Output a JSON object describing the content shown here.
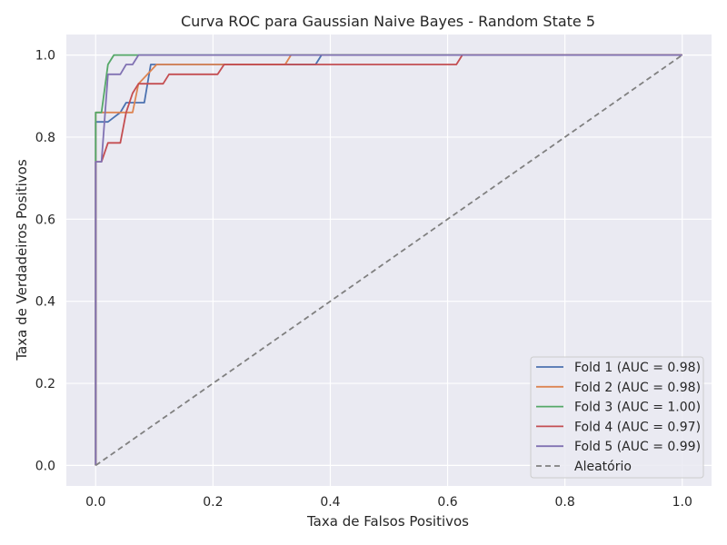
{
  "chart_data": {
    "type": "line",
    "title": "Curva ROC para Gaussian Naive Bayes - Random State 5",
    "xlabel": "Taxa de Falsos Positivos",
    "ylabel": "Taxa de Verdadeiros Positivos",
    "xlim": [
      -0.05,
      1.05
    ],
    "ylim": [
      -0.05,
      1.05
    ],
    "xticks": [
      "0.0",
      "0.2",
      "0.4",
      "0.6",
      "0.8",
      "1.0"
    ],
    "yticks": [
      "0.0",
      "0.2",
      "0.4",
      "0.6",
      "0.8",
      "1.0"
    ],
    "grid": true,
    "legend_position": "lower-right",
    "background": "#eaeaf2",
    "series": [
      {
        "name": "Fold 1 (AUC = 0.98)",
        "color": "#4c72b0",
        "x": [
          0.0,
          0.0,
          0.021,
          0.042,
          0.052,
          0.083,
          0.094,
          0.375,
          0.385,
          1.0
        ],
        "y": [
          0.0,
          0.837,
          0.837,
          0.86,
          0.884,
          0.884,
          0.977,
          0.977,
          1.0,
          1.0
        ]
      },
      {
        "name": "Fold 2 (AUC = 0.98)",
        "color": "#dd8452",
        "x": [
          0.0,
          0.0,
          0.063,
          0.073,
          0.104,
          0.323,
          0.333,
          1.0
        ],
        "y": [
          0.0,
          0.86,
          0.86,
          0.93,
          0.977,
          0.977,
          1.0,
          1.0
        ]
      },
      {
        "name": "Fold 3 (AUC = 1.00)",
        "color": "#55a868",
        "x": [
          0.0,
          0.0,
          0.01,
          0.021,
          0.031,
          0.073,
          1.0
        ],
        "y": [
          0.0,
          0.86,
          0.86,
          0.977,
          1.0,
          1.0,
          1.0
        ]
      },
      {
        "name": "Fold 4 (AUC = 0.97)",
        "color": "#c44e52",
        "x": [
          0.0,
          0.0,
          0.01,
          0.021,
          0.042,
          0.052,
          0.063,
          0.073,
          0.115,
          0.125,
          0.208,
          0.219,
          0.615,
          0.625,
          1.0
        ],
        "y": [
          0.0,
          0.74,
          0.74,
          0.786,
          0.786,
          0.86,
          0.907,
          0.93,
          0.93,
          0.953,
          0.953,
          0.977,
          0.977,
          1.0,
          1.0
        ]
      },
      {
        "name": "Fold 5 (AUC = 0.99)",
        "color": "#8172b3",
        "x": [
          0.0,
          0.0,
          0.01,
          0.021,
          0.042,
          0.052,
          0.063,
          0.073,
          1.0
        ],
        "y": [
          0.0,
          0.74,
          0.74,
          0.953,
          0.953,
          0.977,
          0.977,
          1.0,
          1.0
        ]
      },
      {
        "name": "Aleatório",
        "color": "#808080",
        "dashed": true,
        "x": [
          0.0,
          1.0
        ],
        "y": [
          0.0,
          1.0
        ]
      }
    ]
  }
}
